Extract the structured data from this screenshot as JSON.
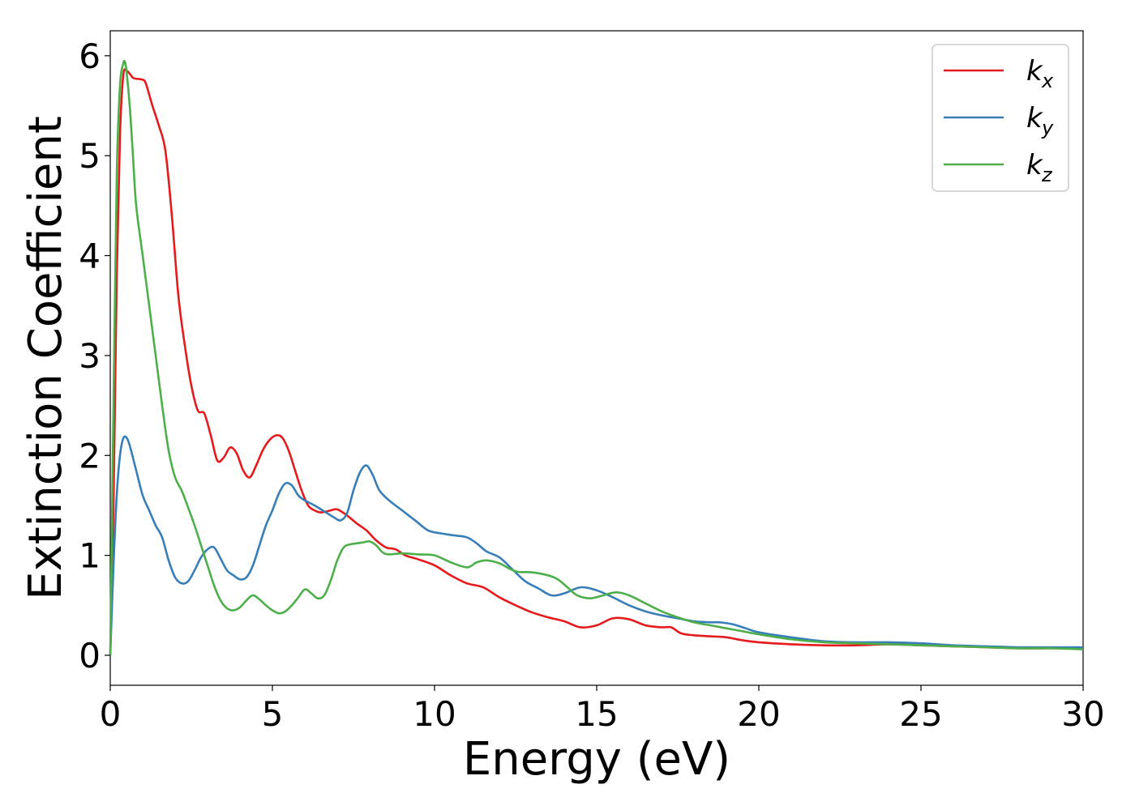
{
  "chart_data": {
    "type": "line",
    "title": "",
    "xlabel": "Energy (eV)",
    "ylabel": "Extinction Coefficient",
    "xlim": [
      0,
      30
    ],
    "ylim": [
      -0.3,
      6.25
    ],
    "xticks": [
      0,
      5,
      10,
      15,
      20,
      25,
      30
    ],
    "yticks": [
      0,
      1,
      2,
      3,
      4,
      5,
      6
    ],
    "grid": false,
    "legend_position": "top-right",
    "series": [
      {
        "name": "k_x",
        "label_main": "k",
        "label_sub": "x",
        "color": "#e41a1c",
        "x": [
          0,
          0.1,
          0.2,
          0.3,
          0.4,
          0.5,
          0.6,
          0.7,
          0.8,
          1.0,
          1.1,
          1.3,
          1.5,
          1.7,
          1.9,
          2.1,
          2.3,
          2.5,
          2.7,
          2.9,
          3.1,
          3.3,
          3.5,
          3.7,
          3.9,
          4.1,
          4.3,
          4.5,
          4.7,
          4.9,
          5.1,
          5.3,
          5.5,
          5.7,
          5.9,
          6.1,
          6.3,
          6.5,
          6.8,
          7.0,
          7.3,
          7.6,
          7.9,
          8.2,
          8.5,
          8.8,
          9.1,
          9.5,
          10.0,
          10.5,
          11.0,
          11.5,
          12.0,
          12.5,
          13.0,
          13.5,
          14.0,
          14.5,
          15.0,
          15.5,
          16.0,
          16.5,
          17.0,
          17.3,
          17.6,
          18.0,
          18.5,
          19.0,
          19.5,
          20.0,
          21.0,
          22.0,
          23.0,
          24.0,
          25.0,
          26.0,
          27.0,
          28.0,
          29.0,
          30.0
        ],
        "y": [
          0,
          1.5,
          3.8,
          5.2,
          5.8,
          5.85,
          5.82,
          5.78,
          5.77,
          5.76,
          5.72,
          5.5,
          5.3,
          5.05,
          4.4,
          3.6,
          3.1,
          2.7,
          2.45,
          2.42,
          2.2,
          1.95,
          1.98,
          2.08,
          2.02,
          1.85,
          1.78,
          1.9,
          2.05,
          2.15,
          2.2,
          2.18,
          2.05,
          1.85,
          1.65,
          1.5,
          1.45,
          1.43,
          1.45,
          1.46,
          1.4,
          1.32,
          1.25,
          1.15,
          1.08,
          1.06,
          1.0,
          0.96,
          0.9,
          0.8,
          0.72,
          0.68,
          0.58,
          0.5,
          0.43,
          0.38,
          0.34,
          0.28,
          0.3,
          0.37,
          0.36,
          0.3,
          0.28,
          0.28,
          0.22,
          0.2,
          0.19,
          0.18,
          0.15,
          0.13,
          0.11,
          0.1,
          0.1,
          0.11,
          0.1,
          0.09,
          0.08,
          0.07,
          0.07,
          0.07
        ]
      },
      {
        "name": "k_y",
        "label_main": "k",
        "label_sub": "y",
        "color": "#377eb8",
        "x": [
          0,
          0.1,
          0.2,
          0.3,
          0.4,
          0.5,
          0.6,
          0.8,
          1.0,
          1.2,
          1.4,
          1.6,
          1.8,
          2.0,
          2.2,
          2.4,
          2.6,
          2.8,
          3.0,
          3.2,
          3.4,
          3.6,
          3.8,
          4.0,
          4.2,
          4.4,
          4.6,
          4.8,
          5.0,
          5.2,
          5.4,
          5.6,
          5.8,
          6.0,
          6.3,
          6.6,
          6.9,
          7.1,
          7.3,
          7.5,
          7.7,
          7.9,
          8.1,
          8.3,
          8.6,
          9.0,
          9.4,
          9.8,
          10.2,
          10.6,
          11.0,
          11.3,
          11.6,
          12.0,
          12.4,
          12.8,
          13.2,
          13.6,
          14.0,
          14.5,
          15.0,
          15.5,
          16.0,
          16.5,
          17.0,
          17.5,
          18.0,
          18.5,
          18.8,
          19.2,
          19.6,
          20.0,
          21.0,
          22.0,
          23.0,
          24.0,
          25.0,
          26.0,
          27.0,
          28.0,
          29.0,
          30.0
        ],
        "y": [
          0,
          0.9,
          1.6,
          2.0,
          2.17,
          2.18,
          2.1,
          1.85,
          1.6,
          1.45,
          1.3,
          1.18,
          0.95,
          0.78,
          0.72,
          0.74,
          0.85,
          0.98,
          1.06,
          1.08,
          0.97,
          0.85,
          0.8,
          0.76,
          0.78,
          0.9,
          1.1,
          1.3,
          1.45,
          1.62,
          1.72,
          1.7,
          1.6,
          1.55,
          1.5,
          1.44,
          1.38,
          1.35,
          1.42,
          1.65,
          1.83,
          1.9,
          1.8,
          1.65,
          1.55,
          1.45,
          1.35,
          1.25,
          1.22,
          1.2,
          1.18,
          1.12,
          1.04,
          0.98,
          0.86,
          0.74,
          0.67,
          0.6,
          0.62,
          0.68,
          0.65,
          0.58,
          0.5,
          0.44,
          0.4,
          0.37,
          0.34,
          0.33,
          0.33,
          0.31,
          0.27,
          0.23,
          0.18,
          0.14,
          0.13,
          0.13,
          0.12,
          0.1,
          0.09,
          0.08,
          0.08,
          0.08
        ]
      },
      {
        "name": "k_z",
        "label_main": "k",
        "label_sub": "z",
        "color": "#4daf4a",
        "x": [
          0,
          0.1,
          0.2,
          0.3,
          0.4,
          0.45,
          0.5,
          0.6,
          0.7,
          0.8,
          1.0,
          1.2,
          1.4,
          1.6,
          1.8,
          2.0,
          2.2,
          2.4,
          2.6,
          2.8,
          3.0,
          3.2,
          3.4,
          3.6,
          3.8,
          4.0,
          4.2,
          4.4,
          4.6,
          4.8,
          5.0,
          5.2,
          5.4,
          5.6,
          5.8,
          6.0,
          6.2,
          6.4,
          6.6,
          6.8,
          7.0,
          7.2,
          7.4,
          7.6,
          7.8,
          8.0,
          8.2,
          8.4,
          8.6,
          9.0,
          9.5,
          10.0,
          10.5,
          11.0,
          11.3,
          11.6,
          12.0,
          12.5,
          13.0,
          13.5,
          13.8,
          14.1,
          14.4,
          14.8,
          15.2,
          15.6,
          16.0,
          16.5,
          17.0,
          17.5,
          18.0,
          18.5,
          19.0,
          19.5,
          20.0,
          21.0,
          22.0,
          23.0,
          24.0,
          25.0,
          26.0,
          27.0,
          28.0,
          29.0,
          30.0
        ],
        "y": [
          0,
          2.5,
          4.8,
          5.7,
          5.92,
          5.94,
          5.85,
          5.5,
          5.0,
          4.5,
          4.0,
          3.5,
          3.0,
          2.5,
          2.05,
          1.78,
          1.65,
          1.48,
          1.3,
          1.1,
          0.9,
          0.7,
          0.55,
          0.47,
          0.45,
          0.48,
          0.55,
          0.6,
          0.56,
          0.5,
          0.45,
          0.42,
          0.44,
          0.5,
          0.58,
          0.66,
          0.62,
          0.57,
          0.6,
          0.75,
          0.95,
          1.08,
          1.11,
          1.12,
          1.13,
          1.14,
          1.1,
          1.03,
          1.01,
          1.02,
          1.01,
          1.0,
          0.93,
          0.88,
          0.93,
          0.95,
          0.92,
          0.84,
          0.83,
          0.8,
          0.76,
          0.68,
          0.6,
          0.57,
          0.6,
          0.63,
          0.6,
          0.52,
          0.44,
          0.38,
          0.33,
          0.3,
          0.27,
          0.24,
          0.21,
          0.16,
          0.13,
          0.12,
          0.11,
          0.1,
          0.09,
          0.08,
          0.07,
          0.07,
          0.06
        ]
      }
    ]
  }
}
